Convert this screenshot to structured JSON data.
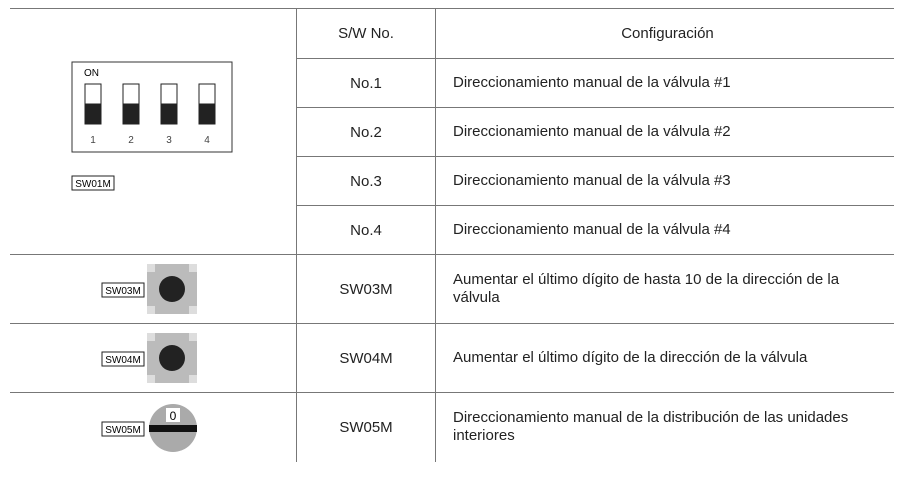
{
  "table": {
    "header": [
      "S/W No.",
      "Configuración"
    ],
    "rows": [
      {
        "sw": "No.1",
        "config": "Direccionamiento manual de la válvula #1"
      },
      {
        "sw": "No.2",
        "config": "Direccionamiento manual de la válvula #2"
      },
      {
        "sw": "No.3",
        "config": "Direccionamiento manual de la válvula #3"
      },
      {
        "sw": "No.4",
        "config": "Direccionamiento manual de la válvula #4"
      },
      {
        "sw": "SW03M",
        "config": "Aumentar el último dígito de hasta 10 de la dirección de la válvula"
      },
      {
        "sw": "SW04M",
        "config": "Aumentar el último dígito de la dirección de la válvula"
      },
      {
        "sw": "SW05M",
        "config": "Direccionamiento manual de la distribución de las unidades interiores"
      }
    ]
  },
  "dip_switch": {
    "on": "ON",
    "numbers": [
      "1",
      "2",
      "3",
      "4"
    ],
    "label": "SW01M"
  },
  "button_1": {
    "label": "SW03M"
  },
  "button_2": {
    "label": "SW04M"
  },
  "rotary": {
    "label": "SW05M",
    "mark": "0"
  }
}
